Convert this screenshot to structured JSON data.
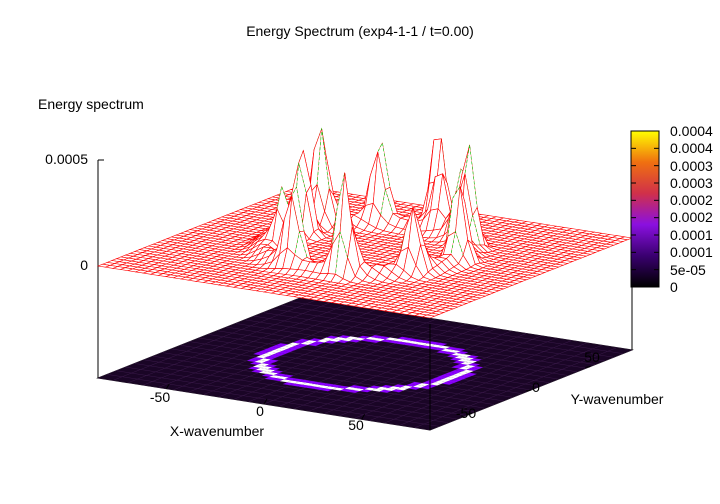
{
  "chart_data": {
    "type": "surface",
    "title": "Energy Spectrum (exp4-1-1 / t=0.00)",
    "zlabel": "Energy spectrum",
    "xlabel": "X-wavenumber",
    "ylabel": "Y-wavenumber",
    "xlim": [
      -85,
      85
    ],
    "ylim": [
      -85,
      85
    ],
    "zlim": [
      0,
      0.0005
    ],
    "xticks": [
      -50,
      0,
      50
    ],
    "yticks": [
      -50,
      0,
      50
    ],
    "xtick_labels": [
      "-50",
      "0",
      "50"
    ],
    "ytick_labels": [
      "-50",
      "0",
      "50"
    ],
    "zticks": [
      0,
      0.0005
    ],
    "ztick_labels": [
      "0",
      "0.0005"
    ],
    "colorbar": {
      "range": [
        0,
        0.0004
      ],
      "tick_labels": [
        "0.0004",
        "0.0004",
        "0.0003",
        "0.0003",
        "0.0002",
        "0.0002",
        "0.0001",
        "0.0001",
        "5e-05",
        "0"
      ]
    },
    "ring": {
      "radius_wavenumber": 45
    },
    "peaks": [
      {
        "x": 2,
        "y": 58,
        "z": 0.00048
      },
      {
        "x": -38,
        "y": 10,
        "z": 0.00042
      },
      {
        "x": -40,
        "y": 28,
        "z": 0.00047
      },
      {
        "x": -30,
        "y": -20,
        "z": 0.00032
      },
      {
        "x": -12,
        "y": -40,
        "z": 0.00038
      },
      {
        "x": 15,
        "y": -42,
        "z": 0.00044
      },
      {
        "x": 38,
        "y": -22,
        "z": 0.00028
      },
      {
        "x": 45,
        "y": 5,
        "z": 0.00036
      },
      {
        "x": 34,
        "y": 30,
        "z": 0.00046
      },
      {
        "x": 10,
        "y": 48,
        "z": 0.0003
      },
      {
        "x": -20,
        "y": 45,
        "z": 0.0004
      },
      {
        "x": 25,
        "y": 42,
        "z": 0.00034
      }
    ],
    "colors": {
      "surface": "#ff0000",
      "hidden": "#00cc00",
      "base": "#1a0526",
      "ring": "#ffffff",
      "ring_glow": "#8a00ff"
    }
  }
}
